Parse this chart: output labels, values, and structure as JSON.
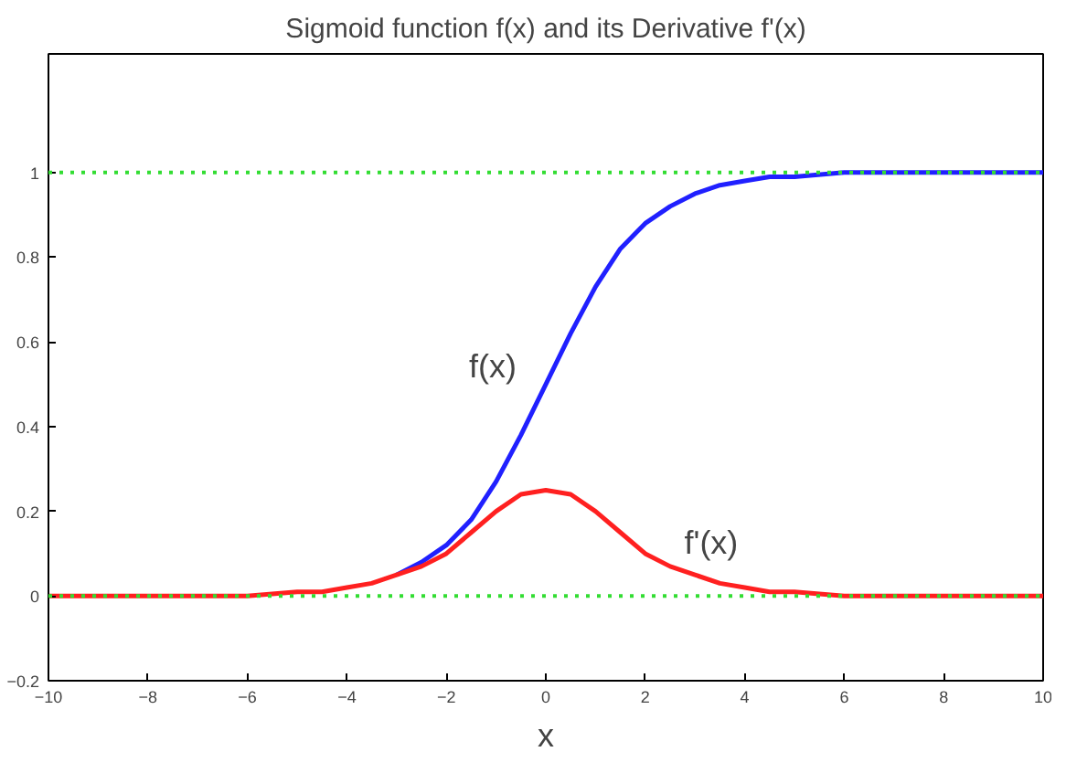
{
  "chart_data": {
    "type": "line",
    "title": "Sigmoid function f(x) and its Derivative f'(x)",
    "xlabel": "x",
    "x": [
      -10,
      -8,
      -6,
      -5,
      -4.5,
      -4,
      -3.5,
      -3,
      -2.5,
      -2,
      -1.5,
      -1,
      -0.5,
      0,
      0.5,
      1,
      1.5,
      2,
      2.5,
      3,
      3.5,
      4,
      4.5,
      5,
      6,
      8,
      10
    ],
    "series": [
      {
        "color": "#2020ff",
        "values": [
          null,
          null,
          null,
          null,
          null,
          null,
          null,
          0.05,
          0.08,
          0.12,
          0.18,
          0.27,
          0.38,
          0.5,
          0.62,
          0.73,
          0.82,
          0.88,
          0.92,
          0.95,
          0.97,
          0.98,
          0.99,
          0.99,
          1,
          1,
          1
        ]
      },
      {
        "color": "#ff2020",
        "values": [
          0,
          0,
          0,
          0.01,
          0.01,
          0.02,
          0.03,
          0.05,
          0.07,
          0.1,
          0.15,
          0.2,
          0.24,
          0.25,
          0.24,
          0.2,
          0.15,
          0.1,
          0.07,
          0.05,
          0.03,
          0.02,
          0.01,
          0.01,
          0,
          0,
          0
        ]
      }
    ],
    "annotations": [
      "f(x)",
      "f'(x)"
    ],
    "ref_lines": [
      {
        "axis": "y",
        "value": 1,
        "color": "#33dd33",
        "line_style": "dotted"
      },
      {
        "axis": "y",
        "value": 0,
        "color": "#33dd33",
        "line_style": "dotted"
      }
    ],
    "xlim": [
      -10,
      10
    ],
    "ylim": [
      -0.2,
      1.28
    ],
    "xticks": [
      -10,
      -8,
      -6,
      -4,
      -2,
      0,
      2,
      4,
      6,
      8,
      10
    ],
    "yticks": [
      -0.2,
      0,
      0.2,
      0.4,
      0.6,
      0.8,
      1
    ],
    "grid": false,
    "marker": "none",
    "line_style": "solid"
  }
}
